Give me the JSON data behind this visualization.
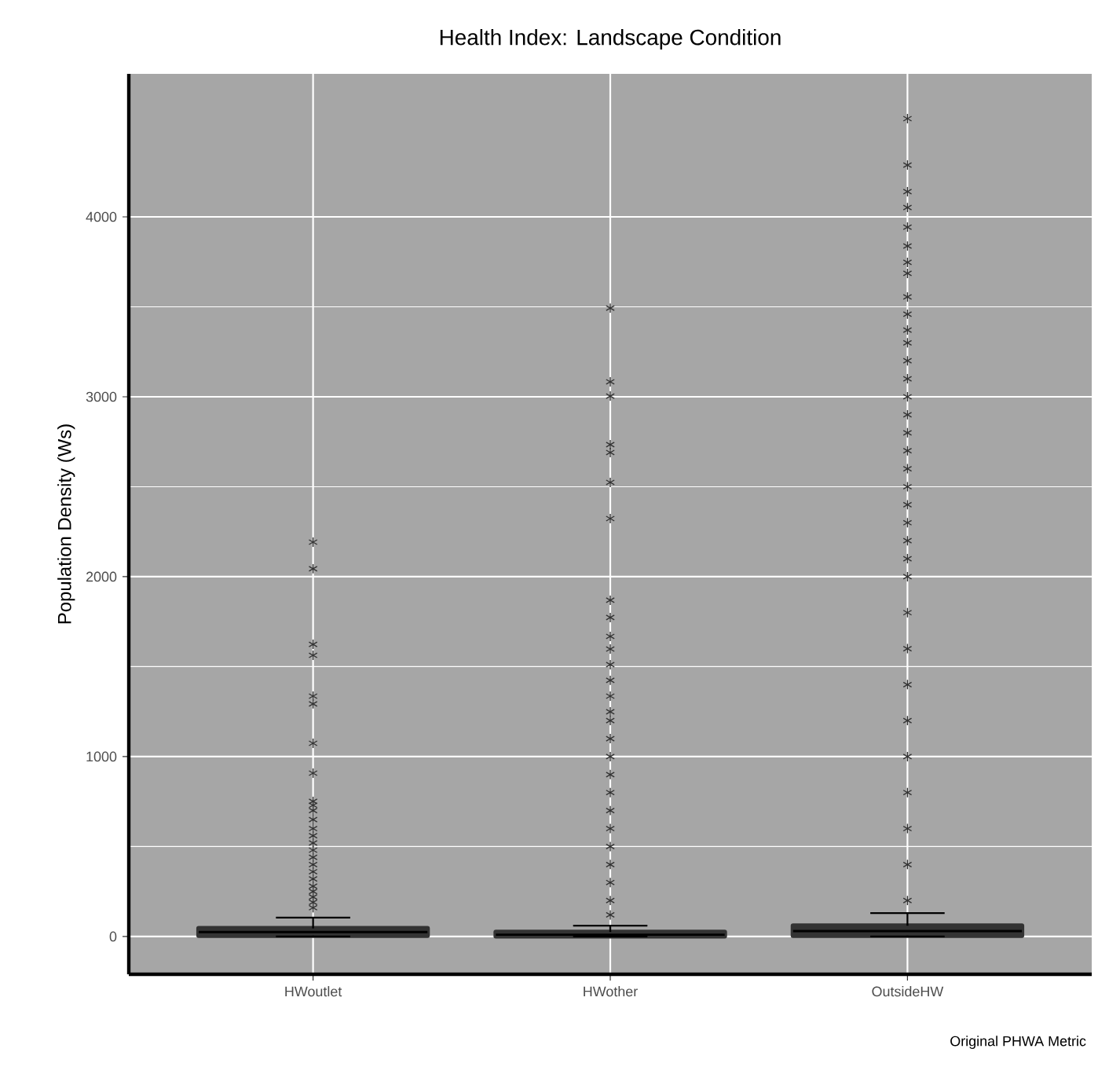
{
  "chart_data": {
    "type": "box",
    "title": "Health Index: Landscape Condition",
    "ylabel": "Population Density (Ws)",
    "categories": [
      "HWoutlet",
      "HWother",
      "OutsideHW"
    ],
    "boxes": [
      {
        "low": 0,
        "q1": 5,
        "median": 25,
        "q3": 45,
        "high": 105,
        "outliers": [
          160,
          190,
          220,
          250,
          280,
          320,
          360,
          400,
          440,
          480,
          520,
          560,
          600,
          650,
          700,
          730,
          751,
          908,
          1074,
          1293,
          1336,
          1563,
          1624,
          2044,
          2192
        ]
      },
      {
        "low": 0,
        "q1": 2,
        "median": 10,
        "q3": 25,
        "high": 60,
        "outliers": [
          120,
          200,
          300,
          400,
          500,
          600,
          700,
          800,
          900,
          1000,
          1100,
          1200,
          1249,
          1336,
          1424,
          1511,
          1598,
          1668,
          1773,
          1869,
          2323,
          2524,
          2690,
          2734,
          3004,
          3083,
          3493
        ]
      },
      {
        "low": 0,
        "q1": 5,
        "median": 30,
        "q3": 60,
        "high": 130,
        "outliers": [
          200,
          400,
          600,
          800,
          1000,
          1200,
          1400,
          1600,
          1800,
          2000,
          2100,
          2200,
          2300,
          2400,
          2500,
          2600,
          2700,
          2800,
          2900,
          3000,
          3100,
          3200,
          3300,
          3371,
          3459,
          3555,
          3686,
          3747,
          3838,
          3943,
          4052,
          4140,
          4288,
          4546
        ]
      }
    ],
    "color": "#333333",
    "marker": "star",
    "ylim": [
      -210,
      4795
    ],
    "yticks": [
      0,
      1000,
      2000,
      3000,
      4000
    ],
    "grid": true,
    "annotations": [
      "Original PHWA Metric"
    ]
  }
}
